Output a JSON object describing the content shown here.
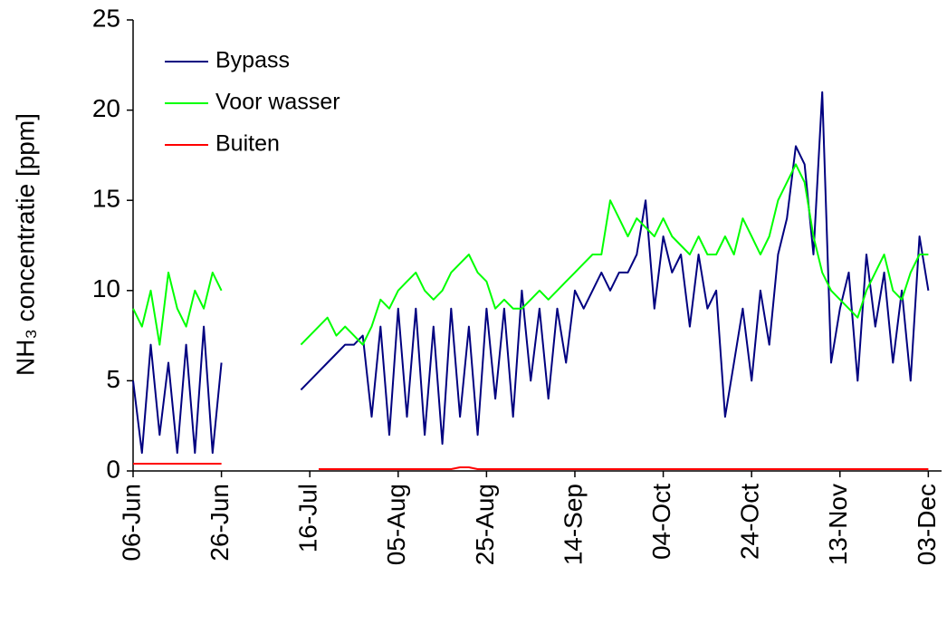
{
  "chart_data": {
    "type": "line",
    "y_label": "NH₃ concentratie [ppm]",
    "x": [
      0,
      2,
      4,
      6,
      8,
      10,
      12,
      14,
      16,
      18,
      20,
      22,
      24,
      26,
      28,
      30,
      32,
      34,
      36,
      38,
      40,
      42,
      44,
      46,
      48,
      50,
      52,
      54,
      56,
      58,
      60,
      62,
      64,
      66,
      68,
      70,
      72,
      74,
      76,
      78,
      80,
      82,
      84,
      86,
      88,
      90,
      92,
      94,
      96,
      98,
      100,
      102,
      104,
      106,
      108,
      110,
      112,
      114,
      116,
      118,
      120,
      122,
      124,
      126,
      128,
      130,
      132,
      134,
      136,
      138,
      140,
      142,
      144,
      146,
      148,
      150,
      152,
      154,
      156,
      158,
      160,
      162,
      164,
      166,
      168,
      170,
      172,
      174,
      176,
      178,
      180
    ],
    "xlim": [
      0,
      183
    ],
    "xticks": [
      {
        "value": 0,
        "label": "06-Jun"
      },
      {
        "value": 20,
        "label": "26-Jun"
      },
      {
        "value": 40,
        "label": "16-Jul"
      },
      {
        "value": 60,
        "label": "05-Aug"
      },
      {
        "value": 80,
        "label": "25-Aug"
      },
      {
        "value": 100,
        "label": "14-Sep"
      },
      {
        "value": 120,
        "label": "04-Oct"
      },
      {
        "value": 140,
        "label": "24-Oct"
      },
      {
        "value": 160,
        "label": "13-Nov"
      },
      {
        "value": 180,
        "label": "03-Dec"
      }
    ],
    "ylim": [
      0,
      25
    ],
    "yticks": [
      0,
      5,
      10,
      15,
      20,
      25
    ],
    "legend": "upper-left",
    "series": [
      {
        "name": "Bypass",
        "color": "#000080",
        "values": [
          5,
          1,
          7,
          2,
          6,
          1,
          7,
          1,
          8,
          1,
          6,
          null,
          null,
          null,
          null,
          null,
          null,
          null,
          null,
          4.5,
          5,
          5.5,
          6,
          6.5,
          7,
          7,
          7.5,
          3,
          8,
          2,
          9,
          3,
          9,
          2,
          8,
          1.5,
          9,
          3,
          8,
          2,
          9,
          4,
          9,
          3,
          10,
          5,
          9,
          4,
          9,
          6,
          10,
          9,
          10,
          11,
          10,
          11,
          11,
          12,
          15,
          9,
          13,
          11,
          12,
          8,
          12,
          9,
          10,
          3,
          6,
          9,
          5,
          10,
          7,
          12,
          14,
          18,
          17,
          12,
          21,
          6,
          9,
          11,
          5,
          12,
          8,
          11,
          6,
          10,
          5,
          13,
          10
        ]
      },
      {
        "name": "Voor wasser",
        "color": "#00ff00",
        "values": [
          9,
          8,
          10,
          7,
          11,
          9,
          8,
          10,
          9,
          11,
          10,
          null,
          null,
          null,
          null,
          null,
          null,
          null,
          null,
          7,
          7.5,
          8,
          8.5,
          7.5,
          8,
          7.5,
          7,
          8,
          9.5,
          9,
          10,
          10.5,
          11,
          10,
          9.5,
          10,
          11,
          11.5,
          12,
          11,
          10.5,
          9,
          9.5,
          9,
          9,
          9.5,
          10,
          9.5,
          10,
          10.5,
          11,
          11.5,
          12,
          12,
          15,
          14,
          13,
          14,
          13.5,
          13,
          14,
          13,
          12.5,
          12,
          13,
          12,
          12,
          13,
          12,
          14,
          13,
          12,
          13,
          15,
          16,
          17,
          16,
          13,
          11,
          10,
          9.5,
          9,
          8.5,
          10,
          11,
          12,
          10,
          9.5,
          11,
          12,
          12
        ]
      },
      {
        "name": "Buiten",
        "color": "#ff0000",
        "values": [
          0.4,
          0.4,
          0.4,
          0.4,
          0.4,
          0.4,
          0.4,
          0.4,
          0.4,
          0.4,
          0.4,
          null,
          null,
          null,
          null,
          null,
          null,
          null,
          null,
          null,
          null,
          0.1,
          0.1,
          0.1,
          0.1,
          0.1,
          0.1,
          0.1,
          0.1,
          0.1,
          0.1,
          0.1,
          0.1,
          0.1,
          0.1,
          0.1,
          0.1,
          0.2,
          0.2,
          0.1,
          0.1,
          0.1,
          0.1,
          0.1,
          0.1,
          0.1,
          0.1,
          0.1,
          0.1,
          0.1,
          0.1,
          0.1,
          0.1,
          0.1,
          0.1,
          0.1,
          0.1,
          0.1,
          0.1,
          0.1,
          0.1,
          0.1,
          0.1,
          0.1,
          0.1,
          0.1,
          0.1,
          0.1,
          0.1,
          0.1,
          0.1,
          0.1,
          0.1,
          0.1,
          0.1,
          0.1,
          0.1,
          0.1,
          0.1,
          0.1,
          0.1,
          0.1,
          0.1,
          0.1,
          0.1,
          0.1,
          0.1,
          0.1,
          0.1,
          0.1,
          0.1
        ]
      }
    ]
  }
}
